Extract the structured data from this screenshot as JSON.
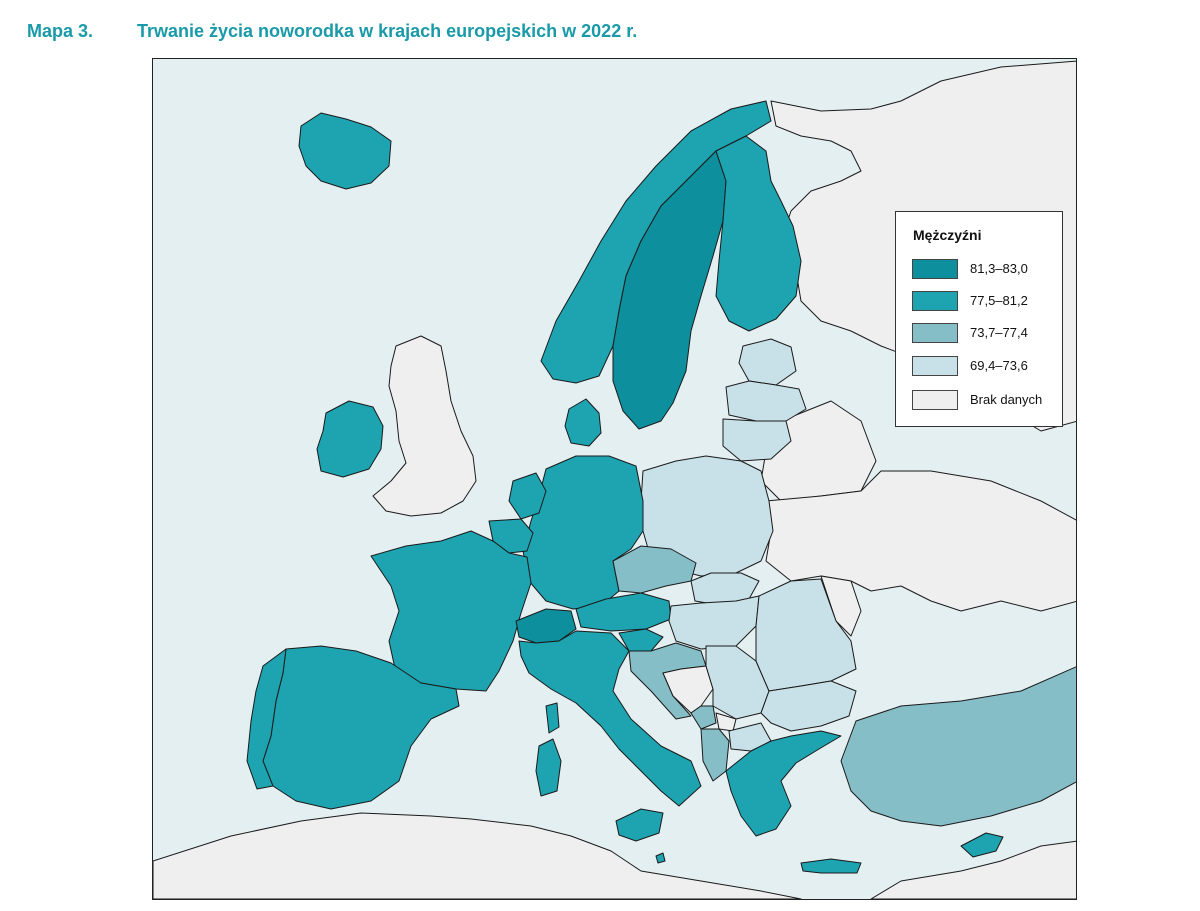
{
  "header": {
    "number": "Mapa 3.",
    "title": "Trwanie życia noworodka w krajach europejskich w 2022 r."
  },
  "legend": {
    "title": "Mężczyźni",
    "items": [
      {
        "label": "81,3–83,0",
        "color": "#0d8f9d"
      },
      {
        "label": "77,5–81,2",
        "color": "#1ea3b0"
      },
      {
        "label": "73,7–77,4",
        "color": "#86bec8"
      },
      {
        "label": "69,4–73,6",
        "color": "#c8e0e7"
      },
      {
        "label": "Brak danych",
        "color": "#efefef"
      }
    ]
  },
  "map": {
    "sea_color": "#e4eff2",
    "border_color": "#1a1a1a",
    "countries": [
      {
        "name": "Iceland",
        "class": "77,5–81,2"
      },
      {
        "name": "Ireland",
        "class": "77,5–81,2"
      },
      {
        "name": "United Kingdom",
        "class": "Brak danych"
      },
      {
        "name": "Norway",
        "class": "77,5–81,2"
      },
      {
        "name": "Sweden",
        "class": "81,3–83,0"
      },
      {
        "name": "Finland",
        "class": "77,5–81,2"
      },
      {
        "name": "Denmark",
        "class": "77,5–81,2"
      },
      {
        "name": "Estonia",
        "class": "69,4–73,6"
      },
      {
        "name": "Latvia",
        "class": "69,4–73,6"
      },
      {
        "name": "Lithuania",
        "class": "69,4–73,6"
      },
      {
        "name": "Poland",
        "class": "69,4–73,6"
      },
      {
        "name": "Germany",
        "class": "77,5–81,2"
      },
      {
        "name": "Netherlands",
        "class": "77,5–81,2"
      },
      {
        "name": "Belgium",
        "class": "77,5–81,2"
      },
      {
        "name": "Luxembourg",
        "class": "77,5–81,2"
      },
      {
        "name": "France",
        "class": "77,5–81,2"
      },
      {
        "name": "Spain",
        "class": "77,5–81,2"
      },
      {
        "name": "Portugal",
        "class": "77,5–81,2"
      },
      {
        "name": "Switzerland",
        "class": "81,3–83,0"
      },
      {
        "name": "Italy",
        "class": "77,5–81,2"
      },
      {
        "name": "Austria",
        "class": "77,5–81,2"
      },
      {
        "name": "Czechia",
        "class": "73,7–77,4"
      },
      {
        "name": "Slovakia",
        "class": "69,4–73,6"
      },
      {
        "name": "Hungary",
        "class": "69,4–73,6"
      },
      {
        "name": "Slovenia",
        "class": "77,5–81,2"
      },
      {
        "name": "Croatia",
        "class": "73,7–77,4"
      },
      {
        "name": "Bosnia and Herzegovina",
        "class": "Brak danych"
      },
      {
        "name": "Serbia",
        "class": "69,4–73,6"
      },
      {
        "name": "Montenegro",
        "class": "73,7–77,4"
      },
      {
        "name": "Albania",
        "class": "73,7–77,4"
      },
      {
        "name": "North Macedonia",
        "class": "69,4–73,6"
      },
      {
        "name": "Kosovo",
        "class": "Brak danych"
      },
      {
        "name": "Romania",
        "class": "69,4–73,6"
      },
      {
        "name": "Bulgaria",
        "class": "69,4–73,6"
      },
      {
        "name": "Greece",
        "class": "77,5–81,2"
      },
      {
        "name": "Turkey",
        "class": "73,7–77,4"
      },
      {
        "name": "Cyprus",
        "class": "77,5–81,2"
      },
      {
        "name": "Malta",
        "class": "77,5–81,2"
      },
      {
        "name": "Belarus",
        "class": "Brak danych"
      },
      {
        "name": "Ukraine",
        "class": "Brak danych"
      },
      {
        "name": "Moldova",
        "class": "Brak danych"
      },
      {
        "name": "Russia",
        "class": "Brak danych"
      },
      {
        "name": "North Africa",
        "class": "Brak danych"
      }
    ]
  }
}
